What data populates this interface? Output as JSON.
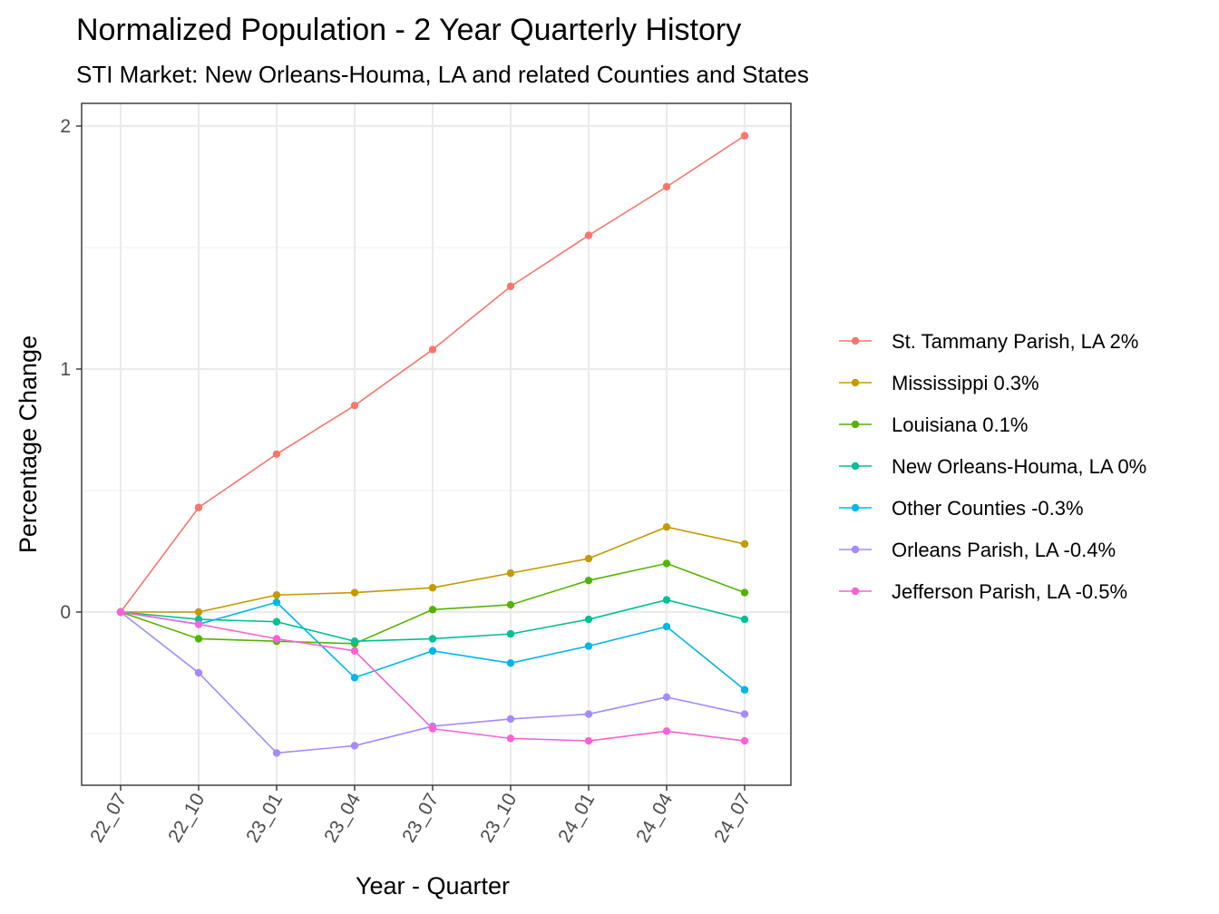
{
  "chart_data": {
    "type": "line",
    "title": "Normalized Population - 2 Year Quarterly History",
    "subtitle": "STI Market: New Orleans-Houma, LA and related Counties and States",
    "xlabel": "Year - Quarter",
    "ylabel": "Percentage Change",
    "categories": [
      "22_07",
      "22_10",
      "23_01",
      "23_04",
      "23_07",
      "23_10",
      "24_01",
      "24_04",
      "24_07"
    ],
    "y_ticks": [
      "0",
      "1",
      "2"
    ],
    "y_tick_values": [
      0,
      1,
      2
    ],
    "ylim": [
      -0.7,
      2.05
    ],
    "grid": true,
    "legend_position": "right",
    "series": [
      {
        "name": "St. Tammany Parish, LA 2%",
        "color": "#F8766D",
        "values": [
          0,
          0.43,
          0.65,
          0.85,
          1.08,
          1.34,
          1.55,
          1.75,
          1.96
        ]
      },
      {
        "name": "Mississippi 0.3%",
        "color": "#C49A00",
        "values": [
          0,
          0.0,
          0.07,
          0.08,
          0.1,
          0.16,
          0.22,
          0.35,
          0.28
        ]
      },
      {
        "name": "Louisiana 0.1%",
        "color": "#53B400",
        "values": [
          0,
          -0.11,
          -0.12,
          -0.13,
          0.01,
          0.03,
          0.13,
          0.2,
          0.08
        ]
      },
      {
        "name": "New Orleans-Houma, LA 0%",
        "color": "#00C094",
        "values": [
          0,
          -0.03,
          -0.04,
          -0.12,
          -0.11,
          -0.09,
          -0.03,
          0.05,
          -0.03
        ]
      },
      {
        "name": "Other Counties -0.3%",
        "color": "#00B6EB",
        "values": [
          0,
          -0.05,
          0.04,
          -0.27,
          -0.16,
          -0.21,
          -0.14,
          -0.06,
          -0.32
        ]
      },
      {
        "name": "Orleans Parish, LA -0.4%",
        "color": "#A58AFF",
        "values": [
          0,
          -0.25,
          -0.58,
          -0.55,
          -0.47,
          -0.44,
          -0.42,
          -0.35,
          -0.42
        ]
      },
      {
        "name": "Jefferson Parish, LA -0.5%",
        "color": "#FB61D7",
        "values": [
          0,
          -0.05,
          -0.11,
          -0.16,
          -0.48,
          -0.52,
          -0.53,
          -0.49,
          -0.53
        ]
      }
    ]
  }
}
